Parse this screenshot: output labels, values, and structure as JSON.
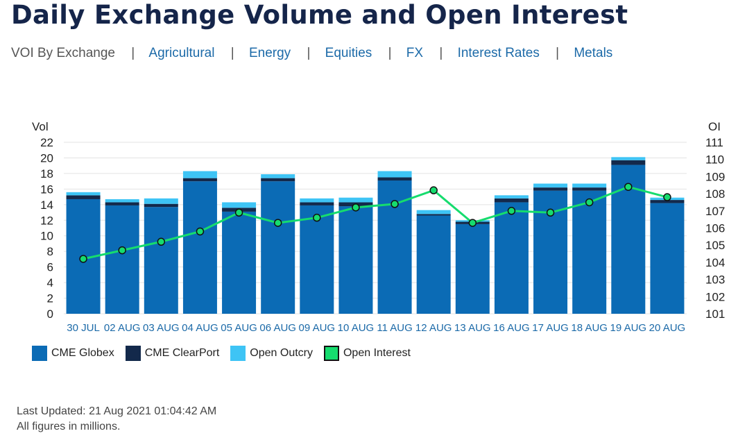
{
  "title": "Daily Exchange Volume and Open Interest",
  "nav": {
    "current": "VOI By Exchange",
    "links": [
      "Agricultural",
      "Energy",
      "Equities",
      "FX",
      "Interest Rates",
      "Metals"
    ]
  },
  "legend": [
    {
      "label": "CME Globex",
      "color": "#0b6bb5"
    },
    {
      "label": "CME ClearPort",
      "color": "#13294b"
    },
    {
      "label": "Open Outcry",
      "color": "#3ec4f5"
    },
    {
      "label": "Open Interest",
      "color": "#16dc6e"
    }
  ],
  "footer": {
    "updated": "Last Updated: 21 Aug 2021 01:04:42 AM",
    "note": "All figures in millions."
  },
  "chart_data": {
    "type": "bar",
    "stacked": true,
    "categories": [
      "30 JUL",
      "02 AUG",
      "03 AUG",
      "04 AUG",
      "05 AUG",
      "06 AUG",
      "09 AUG",
      "10 AUG",
      "11 AUG",
      "12 AUG",
      "13 AUG",
      "16 AUG",
      "17 AUG",
      "18 AUG",
      "19 AUG",
      "20 AUG"
    ],
    "ylabel": "Vol",
    "y2label": "OI",
    "ylim": [
      0,
      22
    ],
    "y2lim": [
      101,
      111
    ],
    "yticks": [
      0,
      2,
      4,
      6,
      8,
      10,
      12,
      14,
      16,
      18,
      20,
      22
    ],
    "y2ticks": [
      101,
      102,
      103,
      104,
      105,
      106,
      107,
      108,
      109,
      110,
      111
    ],
    "grid": true,
    "legend_position": "bottom-left",
    "series": [
      {
        "name": "CME Globex",
        "color": "#0b6bb5",
        "axis": "left",
        "values": [
          14.7,
          13.9,
          13.7,
          17.0,
          13.1,
          17.0,
          13.9,
          13.8,
          17.1,
          12.6,
          11.5,
          14.3,
          15.8,
          15.8,
          19.1,
          14.2
        ]
      },
      {
        "name": "CME ClearPort",
        "color": "#13294b",
        "axis": "left",
        "values": [
          0.5,
          0.4,
          0.4,
          0.4,
          0.5,
          0.4,
          0.4,
          0.5,
          0.4,
          0.2,
          0.3,
          0.5,
          0.4,
          0.4,
          0.6,
          0.4
        ]
      },
      {
        "name": "Open Outcry",
        "color": "#3ec4f5",
        "axis": "left",
        "values": [
          0.4,
          0.4,
          0.7,
          0.9,
          0.7,
          0.5,
          0.5,
          0.6,
          0.8,
          0.5,
          0.2,
          0.4,
          0.5,
          0.5,
          0.4,
          0.3
        ]
      },
      {
        "name": "Open Interest",
        "color": "#16dc6e",
        "type": "line",
        "axis": "right",
        "values": [
          104.2,
          104.7,
          105.2,
          105.8,
          106.9,
          106.3,
          106.6,
          107.2,
          107.4,
          108.2,
          106.3,
          107.0,
          106.9,
          107.5,
          108.4,
          107.8
        ]
      }
    ]
  }
}
